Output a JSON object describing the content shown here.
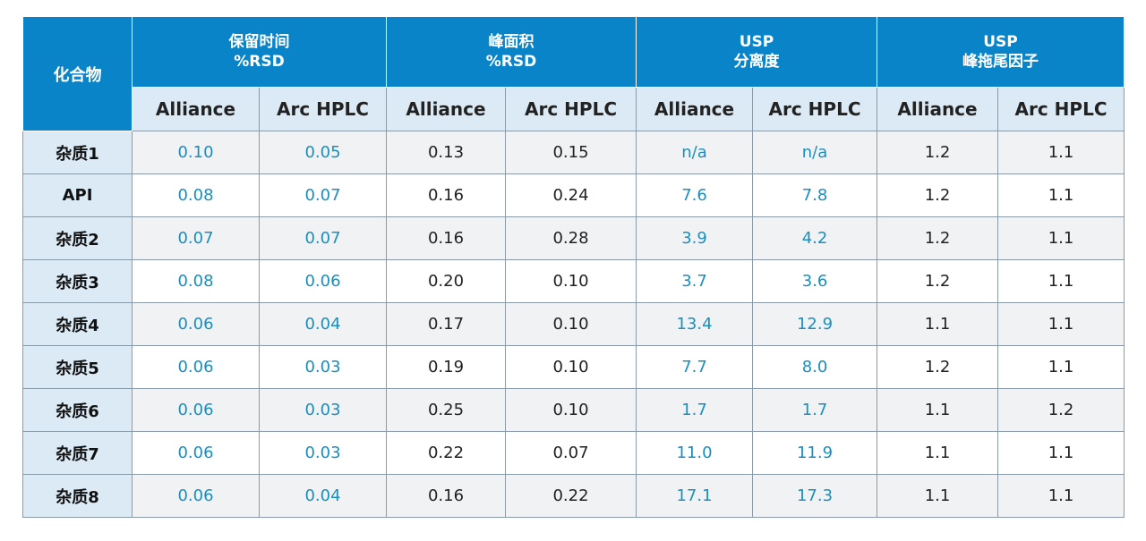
{
  "chart_data": {
    "type": "table",
    "corner_header": "化合物",
    "groups": [
      {
        "line1": "保留时间",
        "line2": "%RSD"
      },
      {
        "line1": "峰面积",
        "line2": "%RSD"
      },
      {
        "line1": "USP",
        "line2": "分离度"
      },
      {
        "line1": "USP",
        "line2": "峰拖尾因子"
      }
    ],
    "subheaders": [
      "Alliance",
      "Arc HPLC",
      "Alliance",
      "Arc HPLC",
      "Alliance",
      "Arc HPLC",
      "Alliance",
      "Arc HPLC"
    ],
    "rows": [
      {
        "label": "杂质1",
        "values": [
          "0.10",
          "0.05",
          "0.13",
          "0.15",
          "n/a",
          "n/a",
          "1.2",
          "1.1"
        ]
      },
      {
        "label": "API",
        "values": [
          "0.08",
          "0.07",
          "0.16",
          "0.24",
          "7.6",
          "7.8",
          "1.2",
          "1.1"
        ]
      },
      {
        "label": "杂质2",
        "values": [
          "0.07",
          "0.07",
          "0.16",
          "0.28",
          "3.9",
          "4.2",
          "1.2",
          "1.1"
        ]
      },
      {
        "label": "杂质3",
        "values": [
          "0.08",
          "0.06",
          "0.20",
          "0.10",
          "3.7",
          "3.6",
          "1.2",
          "1.1"
        ]
      },
      {
        "label": "杂质4",
        "values": [
          "0.06",
          "0.04",
          "0.17",
          "0.10",
          "13.4",
          "12.9",
          "1.1",
          "1.1"
        ]
      },
      {
        "label": "杂质5",
        "values": [
          "0.06",
          "0.03",
          "0.19",
          "0.10",
          "7.7",
          "8.0",
          "1.2",
          "1.1"
        ]
      },
      {
        "label": "杂质6",
        "values": [
          "0.06",
          "0.03",
          "0.25",
          "0.10",
          "1.7",
          "1.7",
          "1.1",
          "1.2"
        ]
      },
      {
        "label": "杂质7",
        "values": [
          "0.06",
          "0.03",
          "0.22",
          "0.07",
          "11.0",
          "11.9",
          "1.1",
          "1.1"
        ]
      },
      {
        "label": "杂质8",
        "values": [
          "0.06",
          "0.04",
          "0.16",
          "0.22",
          "17.1",
          "17.3",
          "1.1",
          "1.1"
        ]
      }
    ]
  },
  "colors": {
    "header_blue": "#0a84c8",
    "subheader_bg": "#dceaf5",
    "highlight_text": "#1a8fbf",
    "normal_text": "#222222"
  }
}
